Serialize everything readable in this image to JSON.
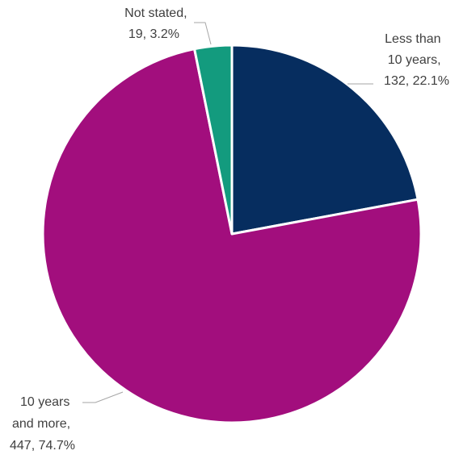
{
  "chart_data": {
    "type": "pie",
    "title": "",
    "slices": [
      {
        "label": "Less than 10 years",
        "count": 132,
        "percent": 22.1,
        "color": "#062d5f",
        "label_lines": [
          "Less than",
          "10 years,",
          "132, 22.1%"
        ]
      },
      {
        "label": "10 years and more",
        "count": 447,
        "percent": 74.7,
        "color": "#a20e7d",
        "label_lines": [
          "10 years",
          "and more,",
          "447, 74.7%"
        ]
      },
      {
        "label": "Not stated",
        "count": 19,
        "percent": 3.2,
        "color": "#139b7e",
        "label_lines": [
          "Not stated,",
          "19, 3.2%"
        ]
      }
    ]
  }
}
